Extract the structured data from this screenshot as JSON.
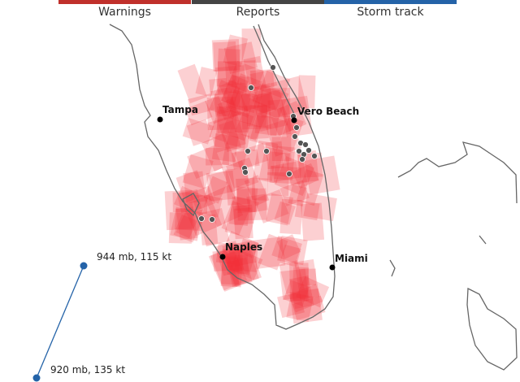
{
  "tabs": [
    "Warnings",
    "Reports",
    "Storm track"
  ],
  "cities": [
    "Tampa",
    "Vero Beach",
    "Naples",
    "Miami"
  ],
  "storm_track": [
    "944 mb, 115 kt",
    "920 mb, 135 kt"
  ]
}
